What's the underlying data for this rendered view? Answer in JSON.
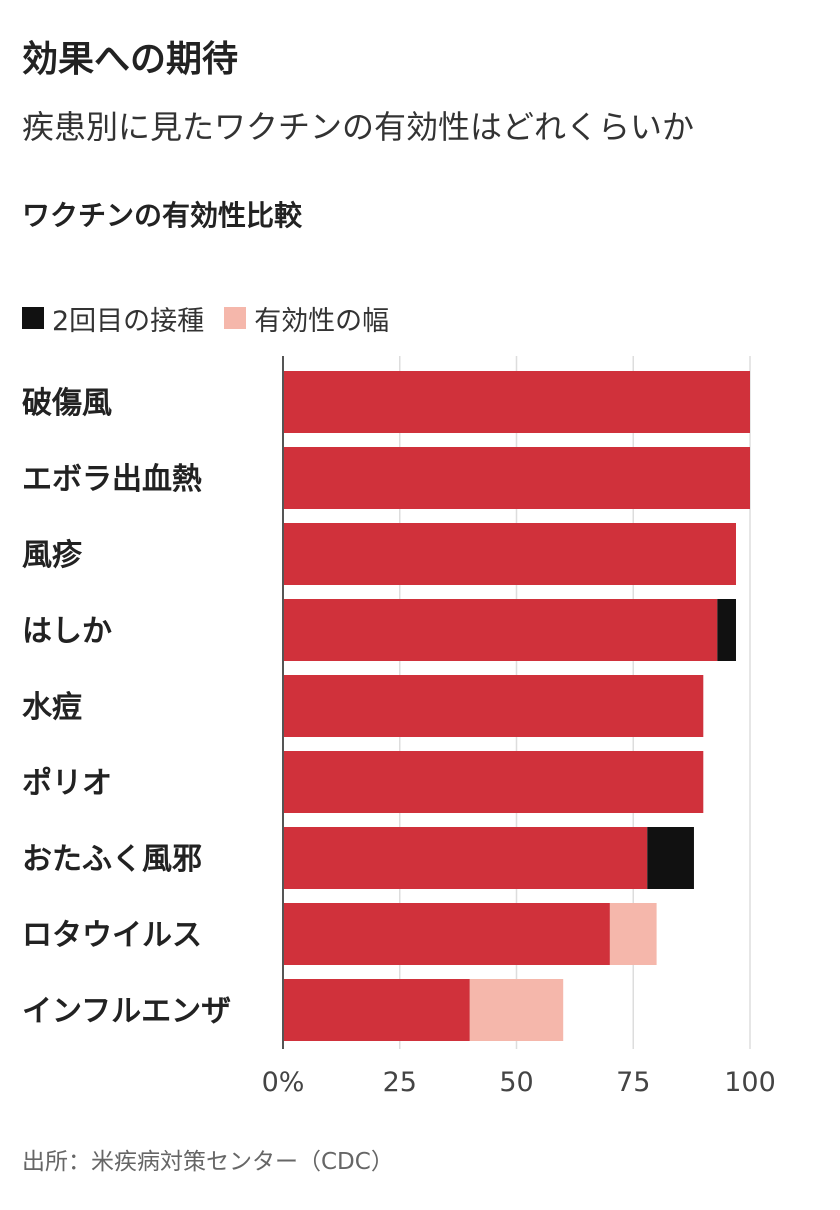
{
  "header": {
    "headline": "効果への期待",
    "subhead": "疾患別に見たワクチンの有効性はどれくらいか"
  },
  "legend": {
    "items": [
      {
        "label": "2回目の接種",
        "color": "#111111"
      },
      {
        "label": "有効性の幅",
        "color": "#f5b7ab"
      }
    ]
  },
  "source": "出所：米疾病対策センター（CDC）",
  "chart_data": {
    "type": "bar",
    "orientation": "horizontal",
    "stacked": true,
    "title": "ワクチンの有効性比較",
    "categories": [
      "破傷風",
      "エボラ出血熱",
      "風疹",
      "はしか",
      "水痘",
      "ポリオ",
      "おたふく風邪",
      "ロタウイルス",
      "インフルエンザ"
    ],
    "series": [
      {
        "values": [
          100,
          100,
          97,
          93,
          90,
          90,
          78,
          70,
          40
        ],
        "color": "#d0313b"
      },
      {
        "name": "2回目の接種",
        "values": [
          0,
          0,
          0,
          4,
          0,
          0,
          10,
          0,
          0
        ],
        "color": "#111111"
      },
      {
        "name": "有効性の幅",
        "values": [
          0,
          0,
          0,
          0,
          0,
          0,
          0,
          10,
          20
        ],
        "color": "#f5b7ab"
      }
    ],
    "xlim": [
      0,
      100
    ],
    "x_ticks": [
      0,
      25,
      50,
      75,
      100
    ],
    "x_tick_labels": [
      "0%",
      "25",
      "50",
      "75",
      "100"
    ],
    "grid": true,
    "legend_position": "top-left"
  }
}
